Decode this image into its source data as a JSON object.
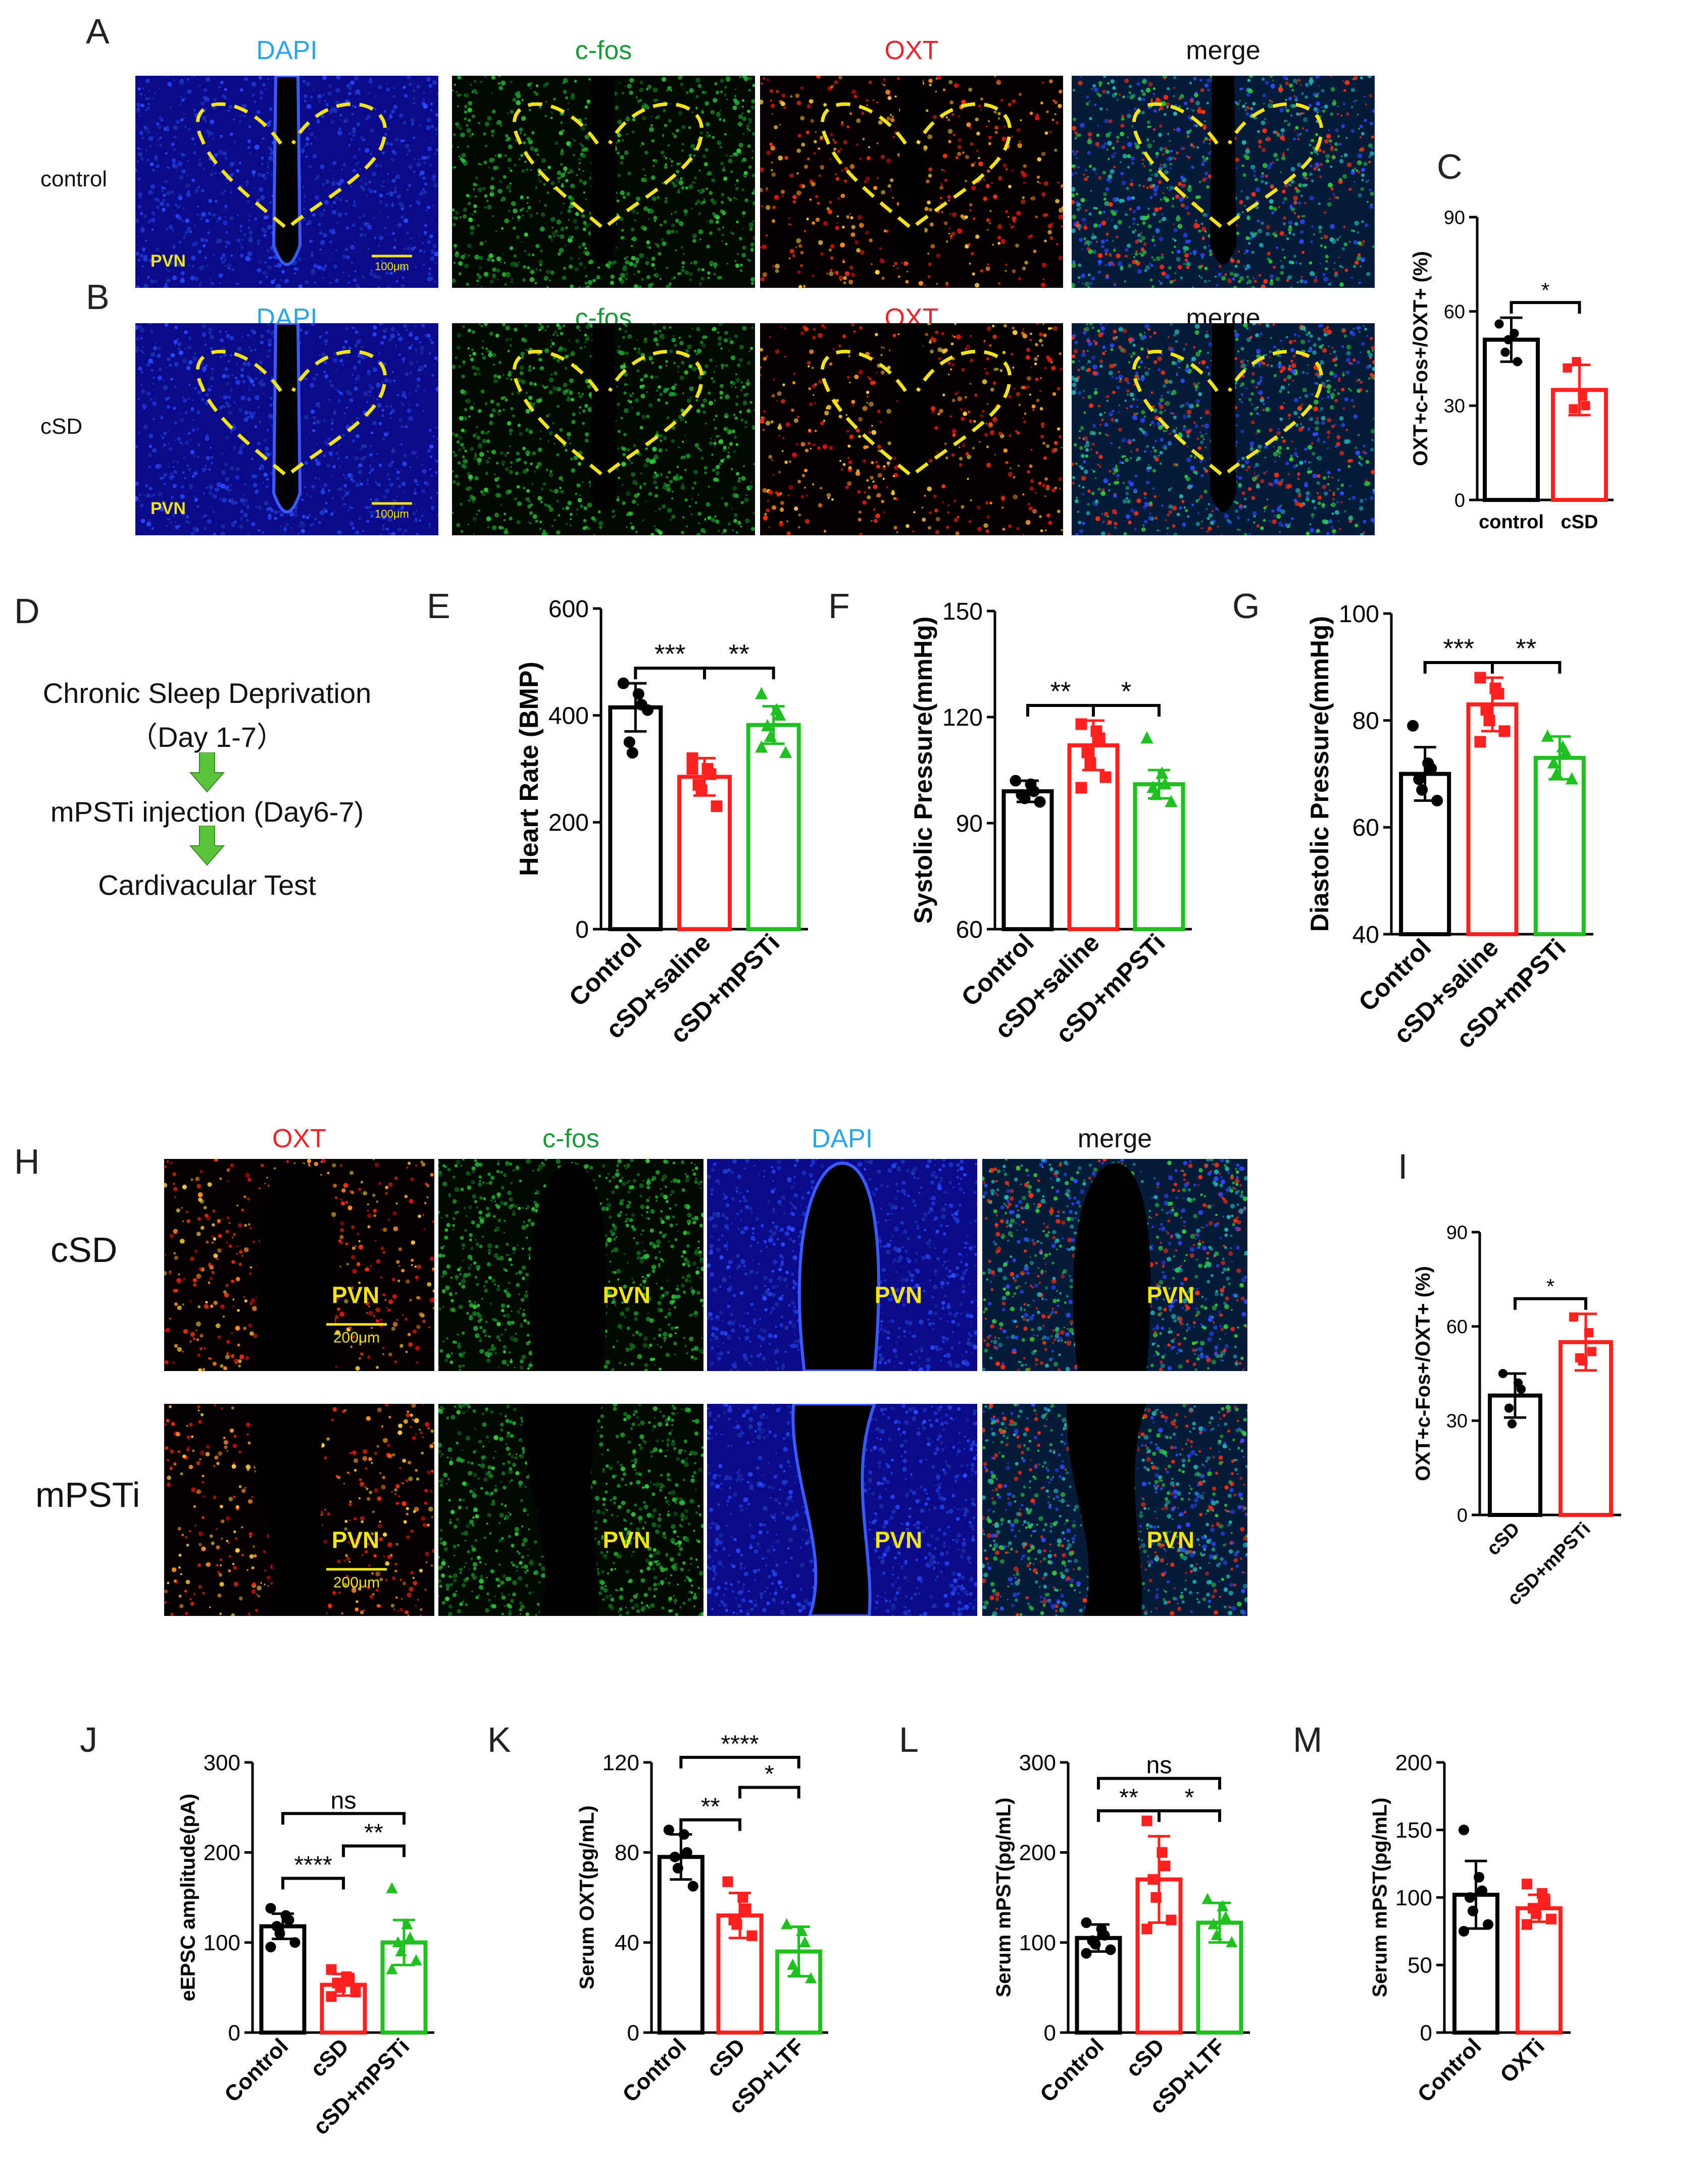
{
  "panel_letters": {
    "A": "A",
    "B": "B",
    "C": "C",
    "D": "D",
    "E": "E",
    "F": "F",
    "G": "G",
    "H": "H",
    "I": "I",
    "J": "J",
    "K": "K",
    "L": "L",
    "M": "M"
  },
  "top_grid": {
    "columns": [
      {
        "label": "DAPI",
        "color": "#2aa6e8"
      },
      {
        "label": "c-fos",
        "color": "#1a9a3a"
      },
      {
        "label": "OXT",
        "color": "#e8262b"
      },
      {
        "label": "merge",
        "color": "#111111"
      }
    ],
    "rows": [
      {
        "label": "control",
        "region": "PVN",
        "scalebar": "100μm"
      },
      {
        "label": "cSD",
        "region": "PVN",
        "scalebar": "100μm"
      }
    ]
  },
  "protocol": {
    "step1": "Chronic Sleep Deprivation",
    "step1_sub": "（Day 1-7）",
    "step2": "mPSTi injection (Day6-7)",
    "step3": "Cardivacular Test"
  },
  "bottom_grid": {
    "columns": [
      {
        "label": "OXT",
        "color": "#e8262b"
      },
      {
        "label": "c-fos",
        "color": "#1a9a3a"
      },
      {
        "label": "DAPI",
        "color": "#2aa6e8"
      },
      {
        "label": "merge",
        "color": "#111111"
      }
    ],
    "rows": [
      {
        "label": "cSD",
        "region": "PVN",
        "scalebar": "200μm"
      },
      {
        "label": "mPSTi",
        "region": "PVN",
        "scalebar": "200μm"
      }
    ]
  },
  "chart_data": [
    {
      "id": "C",
      "type": "bar",
      "ylabel": "OXT+c-Fos+/OXT+ (%)",
      "categories": [
        "control",
        "cSD"
      ],
      "values": [
        51,
        35
      ],
      "errors": [
        7,
        8
      ],
      "colors": [
        "#000000",
        "#ff2020"
      ],
      "markers": [
        "circle",
        "square"
      ],
      "points": [
        [
          56,
          53,
          44,
          47,
          51
        ],
        [
          42,
          33,
          30,
          29,
          44
        ]
      ],
      "ylim": [
        0,
        90
      ],
      "yticks": [
        0,
        30,
        60,
        90
      ],
      "sig": [
        {
          "a": 0,
          "b": 1,
          "label": "*"
        }
      ],
      "rotate": false
    },
    {
      "id": "E",
      "type": "bar",
      "ylabel": "Heart Rate (BMP)",
      "categories": [
        "Control",
        "cSD+saline",
        "cSD+mPSTi"
      ],
      "values": [
        415,
        285,
        382
      ],
      "errors": [
        45,
        35,
        35
      ],
      "colors": [
        "#000000",
        "#ff2020",
        "#20c020"
      ],
      "markers": [
        "circle",
        "square",
        "triangle"
      ],
      "points": [
        [
          460,
          440,
          420,
          350,
          330,
          410,
          460
        ],
        [
          320,
          300,
          290,
          270,
          260,
          230,
          300
        ],
        [
          440,
          410,
          400,
          380,
          360,
          330,
          340
        ]
      ],
      "ylim": [
        0,
        600
      ],
      "yticks": [
        0,
        200,
        400,
        600
      ],
      "sig": [
        {
          "a": 0,
          "b": 1,
          "label": "***"
        },
        {
          "a": 1,
          "b": 2,
          "label": "**"
        }
      ],
      "rotate": true
    },
    {
      "id": "F",
      "type": "bar",
      "ylabel": "Systolic Pressure(mmHg)",
      "categories": [
        "Control",
        "cSD+saline",
        "cSD+mPSTi"
      ],
      "values": [
        99,
        112,
        101
      ],
      "errors": [
        3,
        7,
        4
      ],
      "colors": [
        "#000000",
        "#ff2020",
        "#20c020"
      ],
      "markers": [
        "circle",
        "square",
        "triangle"
      ],
      "points": [
        [
          102,
          101,
          99,
          98,
          97,
          96
        ],
        [
          118,
          116,
          114,
          110,
          107,
          103,
          100
        ],
        [
          114,
          104,
          101,
          100,
          98,
          96
        ]
      ],
      "ylim": [
        60,
        150
      ],
      "yticks": [
        60,
        90,
        120,
        150
      ],
      "sig": [
        {
          "a": 0,
          "b": 1,
          "label": "**"
        },
        {
          "a": 1,
          "b": 2,
          "label": "*"
        }
      ],
      "rotate": true
    },
    {
      "id": "G",
      "type": "bar",
      "ylabel": "Diastolic Pressure(mmHg)",
      "categories": [
        "Control",
        "cSD+saline",
        "cSD+mPSTi"
      ],
      "values": [
        70,
        83,
        73
      ],
      "errors": [
        5,
        5,
        4
      ],
      "colors": [
        "#000000",
        "#ff2020",
        "#20c020"
      ],
      "markers": [
        "circle",
        "square",
        "triangle"
      ],
      "points": [
        [
          79,
          72,
          71,
          69,
          67,
          65
        ],
        [
          88,
          86,
          85,
          82,
          80,
          78,
          76
        ],
        [
          77,
          75,
          74,
          72,
          70,
          69
        ]
      ],
      "ylim": [
        40,
        100
      ],
      "yticks": [
        40,
        60,
        80,
        100
      ],
      "sig": [
        {
          "a": 0,
          "b": 1,
          "label": "***"
        },
        {
          "a": 1,
          "b": 2,
          "label": "**"
        }
      ],
      "rotate": true
    },
    {
      "id": "I",
      "type": "bar",
      "ylabel": "OXT+c-Fos+/OXT+ (%)",
      "categories": [
        "cSD",
        "cSD+mPSTi"
      ],
      "values": [
        38,
        55
      ],
      "errors": [
        7,
        9
      ],
      "colors": [
        "#000000",
        "#ff2020"
      ],
      "markers": [
        "circle",
        "square"
      ],
      "points": [
        [
          45,
          42,
          40,
          34,
          29
        ],
        [
          63,
          58,
          52,
          50,
          49
        ]
      ],
      "ylim": [
        0,
        90
      ],
      "yticks": [
        0,
        30,
        60,
        90
      ],
      "sig": [
        {
          "a": 0,
          "b": 1,
          "label": "*"
        }
      ],
      "rotate": true
    },
    {
      "id": "J",
      "type": "bar",
      "ylabel": "eEPSC amplitude(pA)",
      "categories": [
        "Control",
        "cSD",
        "cSD+mPSTi"
      ],
      "values": [
        118,
        53,
        100
      ],
      "errors": [
        14,
        12,
        25
      ],
      "colors": [
        "#000000",
        "#ff2020",
        "#20c020"
      ],
      "markers": [
        "circle",
        "square",
        "triangle"
      ],
      "points": [
        [
          138,
          130,
          125,
          118,
          110,
          100,
          95
        ],
        [
          70,
          62,
          58,
          55,
          50,
          45,
          40
        ],
        [
          160,
          120,
          105,
          100,
          90,
          80,
          70
        ]
      ],
      "ylim": [
        0,
        300
      ],
      "yticks": [
        0,
        100,
        200,
        300
      ],
      "sig": [
        {
          "a": 0,
          "b": 1,
          "label": "****",
          "lvl": 1
        },
        {
          "a": 1,
          "b": 2,
          "label": "**",
          "lvl": 2
        },
        {
          "a": 0,
          "b": 2,
          "label": "ns",
          "lvl": 3
        }
      ],
      "rotate": true
    },
    {
      "id": "K",
      "type": "bar",
      "ylabel": "Serum OXT(pg/mL)",
      "categories": [
        "Control",
        "cSD",
        "cSD+LTF"
      ],
      "values": [
        78,
        52,
        36
      ],
      "errors": [
        10,
        10,
        11
      ],
      "colors": [
        "#000000",
        "#ff2020",
        "#20c020"
      ],
      "markers": [
        "circle",
        "square",
        "triangle"
      ],
      "points": [
        [
          90,
          88,
          80,
          78,
          73,
          65
        ],
        [
          67,
          60,
          55,
          50,
          48,
          43
        ],
        [
          48,
          45,
          40,
          30,
          27,
          24
        ]
      ],
      "ylim": [
        0,
        120
      ],
      "yticks": [
        0,
        40,
        80,
        120
      ],
      "sig": [
        {
          "a": 0,
          "b": 1,
          "label": "**",
          "lvl": 1
        },
        {
          "a": 1,
          "b": 2,
          "label": "*",
          "lvl": 2
        },
        {
          "a": 0,
          "b": 2,
          "label": "****",
          "lvl": 3
        }
      ],
      "rotate": true
    },
    {
      "id": "L",
      "type": "bar",
      "ylabel": "Serum mPST(pg/mL)",
      "categories": [
        "Control",
        "cSD",
        "cSD+LTF"
      ],
      "values": [
        105,
        170,
        122
      ],
      "errors": [
        15,
        48,
        22
      ],
      "colors": [
        "#000000",
        "#ff2020",
        "#20c020"
      ],
      "markers": [
        "circle",
        "square",
        "triangle"
      ],
      "points": [
        [
          122,
          115,
          108,
          102,
          98,
          92,
          88
        ],
        [
          235,
          200,
          185,
          170,
          150,
          125,
          115
        ],
        [
          148,
          140,
          128,
          120,
          108,
          100
        ]
      ],
      "ylim": [
        0,
        300
      ],
      "yticks": [
        0,
        100,
        200,
        300
      ],
      "sig": [
        {
          "a": 0,
          "b": 1,
          "label": "**",
          "lvl": 1
        },
        {
          "a": 1,
          "b": 2,
          "label": "*",
          "lvl": 1
        },
        {
          "a": 0,
          "b": 2,
          "label": "ns",
          "lvl": 2
        }
      ],
      "rotate": true
    },
    {
      "id": "M",
      "type": "bar",
      "ylabel": "Serum mPST(pg/mL)",
      "categories": [
        "Control",
        "OXTi"
      ],
      "values": [
        102,
        92
      ],
      "errors": [
        25,
        10
      ],
      "colors": [
        "#000000",
        "#ff2020"
      ],
      "markers": [
        "circle",
        "square"
      ],
      "points": [
        [
          150,
          115,
          105,
          100,
          90,
          80,
          75
        ],
        [
          110,
          103,
          97,
          92,
          88,
          84,
          80
        ]
      ],
      "ylim": [
        0,
        200
      ],
      "yticks": [
        0,
        50,
        100,
        150,
        200
      ],
      "sig": [],
      "rotate": true
    }
  ]
}
